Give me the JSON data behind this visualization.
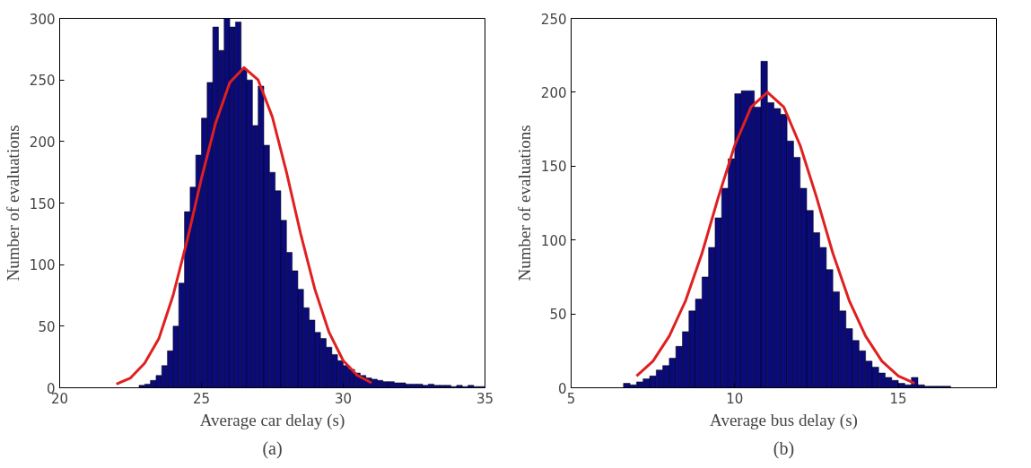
{
  "chart_data": [
    {
      "type": "histogram",
      "xlabel": "Average car delay (s)",
      "ylabel": "Number of evaluations",
      "annotations": [
        "(a)"
      ],
      "xlim": [
        20,
        35
      ],
      "ylim": [
        0,
        300
      ],
      "xticks": [
        20,
        25,
        30,
        35
      ],
      "yticks": [
        0,
        50,
        100,
        150,
        200,
        250,
        300
      ],
      "series": [
        {
          "color": "#0a0a7a",
          "bins": [
            22.8,
            23.0,
            23.2,
            23.4,
            23.6,
            23.8,
            24.0,
            24.2,
            24.4,
            24.6,
            24.8,
            25.0,
            25.2,
            25.4,
            25.6,
            25.8,
            26.0,
            26.2,
            26.4,
            26.6,
            26.8,
            27.0,
            27.2,
            27.4,
            27.6,
            27.8,
            28.0,
            28.2,
            28.4,
            28.6,
            28.8,
            29.0,
            29.2,
            29.4,
            29.6,
            29.8,
            30.0,
            30.2,
            30.4,
            30.6,
            30.8,
            31.0,
            31.2,
            31.4,
            31.6,
            31.8,
            32.0,
            32.2,
            32.4,
            32.6,
            32.8,
            33.0,
            33.2,
            33.4,
            33.6,
            33.8,
            34.0,
            34.2,
            34.4,
            34.6,
            34.8,
            35.0
          ],
          "values": [
            2,
            3,
            6,
            10,
            18,
            30,
            50,
            85,
            143,
            163,
            189,
            219,
            248,
            293,
            274,
            300,
            293,
            297,
            259,
            250,
            213,
            245,
            197,
            175,
            160,
            136,
            110,
            95,
            80,
            65,
            55,
            45,
            40,
            33,
            27,
            22,
            18,
            15,
            12,
            10,
            8,
            7,
            6,
            5,
            5,
            4,
            4,
            3,
            3,
            3,
            2,
            3,
            2,
            2,
            2,
            1,
            2,
            1,
            2,
            1,
            1
          ]
        },
        {
          "type": "line",
          "color": "#e02020",
          "x": [
            22,
            22.5,
            23,
            23.5,
            24,
            24.5,
            25,
            25.5,
            26,
            26.5,
            27,
            27.5,
            28,
            28.5,
            29,
            29.5,
            30,
            30.5,
            31
          ],
          "values": [
            3,
            8,
            20,
            40,
            75,
            120,
            170,
            215,
            248,
            260,
            250,
            220,
            175,
            125,
            80,
            45,
            22,
            10,
            4
          ]
        }
      ]
    },
    {
      "type": "histogram",
      "xlabel": "Average bus delay (s)",
      "ylabel": "Number of evaluations",
      "annotations": [
        "(b)"
      ],
      "xlim": [
        5,
        18
      ],
      "ylim": [
        0,
        250
      ],
      "xticks": [
        5,
        10,
        15
      ],
      "yticks": [
        0,
        50,
        100,
        150,
        200,
        250
      ],
      "series": [
        {
          "color": "#0a0a7a",
          "bins": [
            6.6,
            6.8,
            7.0,
            7.2,
            7.4,
            7.6,
            7.8,
            8.0,
            8.2,
            8.4,
            8.6,
            8.8,
            9.0,
            9.2,
            9.4,
            9.6,
            9.8,
            10.0,
            10.2,
            10.4,
            10.6,
            10.8,
            11.0,
            11.2,
            11.4,
            11.6,
            11.8,
            12.0,
            12.2,
            12.4,
            12.6,
            12.8,
            13.0,
            13.2,
            13.4,
            13.6,
            13.8,
            14.0,
            14.2,
            14.4,
            14.6,
            14.8,
            15.0,
            15.2,
            15.4,
            15.6,
            15.8,
            16.0,
            16.2,
            16.4,
            16.6
          ],
          "values": [
            3,
            2,
            4,
            6,
            8,
            12,
            15,
            20,
            28,
            38,
            52,
            60,
            75,
            95,
            115,
            135,
            155,
            199,
            201,
            201,
            190,
            221,
            193,
            189,
            185,
            167,
            156,
            135,
            120,
            105,
            95,
            80,
            65,
            52,
            40,
            32,
            25,
            18,
            14,
            10,
            7,
            5,
            3,
            2,
            7,
            2,
            1,
            1,
            1,
            1
          ]
        },
        {
          "type": "line",
          "color": "#e02020",
          "x": [
            7,
            7.5,
            8,
            8.5,
            9,
            9.5,
            10,
            10.5,
            11,
            11.5,
            12,
            12.5,
            13,
            13.5,
            14,
            14.5,
            15,
            15.5
          ],
          "values": [
            8,
            18,
            35,
            59,
            91,
            129,
            164,
            190,
            200,
            190,
            164,
            129,
            91,
            59,
            35,
            18,
            8,
            3
          ]
        }
      ]
    }
  ]
}
